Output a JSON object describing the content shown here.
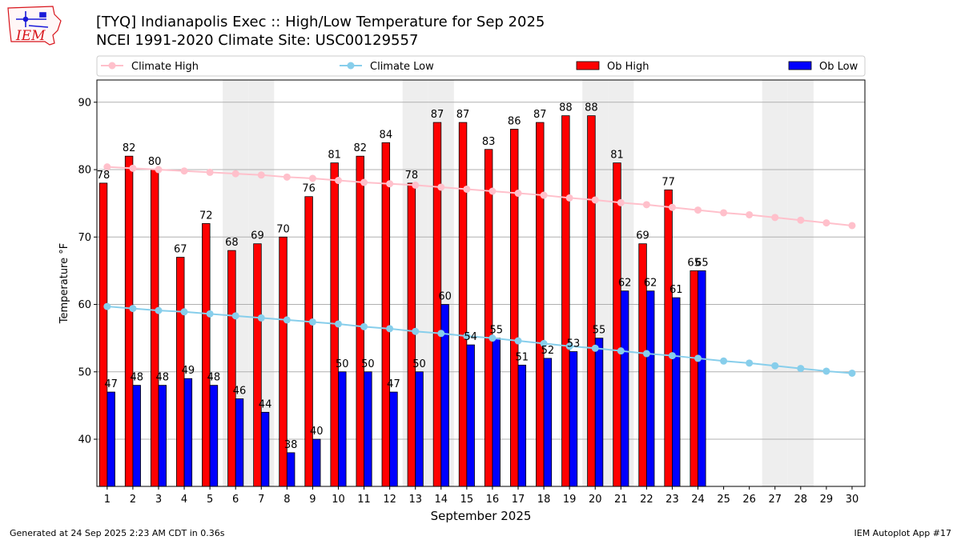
{
  "header": {
    "title_line1": "[TYQ] Indianapolis Exec :: High/Low Temperature for Sep 2025",
    "title_line2": "NCEI 1991-2020 Climate Site: USC00129557",
    "logo_text": "IEM"
  },
  "footer": {
    "generated": "Generated at 24 Sep 2025 2:23 AM CDT in 0.36s",
    "app": "IEM Autoplot App #17"
  },
  "colors": {
    "ob_high": "#ff0000",
    "ob_low": "#0000ff",
    "climate_high": "#ffc0cb",
    "climate_low": "#87ceeb",
    "weekend_band": "#eeeeee",
    "logo": "#d8141b"
  },
  "chart_data": {
    "type": "bar",
    "xlabel": "September 2025",
    "ylabel": "Temperature °F",
    "ylim": [
      33,
      93.3
    ],
    "yticks": [
      40,
      50,
      60,
      70,
      80,
      90
    ],
    "xlim": [
      0.6,
      30.5
    ],
    "days": [
      1,
      2,
      3,
      4,
      5,
      6,
      7,
      8,
      9,
      10,
      11,
      12,
      13,
      14,
      15,
      16,
      17,
      18,
      19,
      20,
      21,
      22,
      23,
      24,
      25,
      26,
      27,
      28,
      29,
      30
    ],
    "weekend_days": [
      6,
      7,
      13,
      14,
      20,
      21,
      27,
      28
    ],
    "grid": true,
    "legend_position": "top",
    "legend": [
      "Climate High",
      "Climate Low",
      "Ob High",
      "Ob Low"
    ],
    "series": [
      {
        "name": "Ob High",
        "kind": "bar",
        "values": [
          78,
          82,
          80,
          67,
          72,
          68,
          69,
          70,
          76,
          81,
          82,
          84,
          78,
          87,
          87,
          83,
          86,
          87,
          88,
          88,
          81,
          69,
          77,
          65
        ]
      },
      {
        "name": "Ob Low",
        "kind": "bar",
        "values": [
          47,
          48,
          48,
          49,
          48,
          46,
          44,
          38,
          40,
          50,
          50,
          47,
          50,
          60,
          54,
          55,
          51,
          52,
          53,
          55,
          62,
          62,
          61,
          65
        ]
      },
      {
        "name": "Climate High",
        "kind": "line",
        "values": [
          80.4,
          80.2,
          80.0,
          79.8,
          79.6,
          79.4,
          79.2,
          78.9,
          78.7,
          78.4,
          78.1,
          77.9,
          77.7,
          77.4,
          77.1,
          76.8,
          76.5,
          76.2,
          75.8,
          75.5,
          75.1,
          74.8,
          74.4,
          74.0,
          73.6,
          73.3,
          72.9,
          72.5,
          72.1,
          71.7
        ]
      },
      {
        "name": "Climate Low",
        "kind": "line",
        "values": [
          59.7,
          59.4,
          59.1,
          58.9,
          58.6,
          58.3,
          58.0,
          57.7,
          57.4,
          57.1,
          56.7,
          56.4,
          56.0,
          55.7,
          55.3,
          55.0,
          54.6,
          54.2,
          53.8,
          53.5,
          53.1,
          52.7,
          52.4,
          52.0,
          51.6,
          51.3,
          50.9,
          50.5,
          50.1,
          49.8
        ]
      }
    ]
  }
}
